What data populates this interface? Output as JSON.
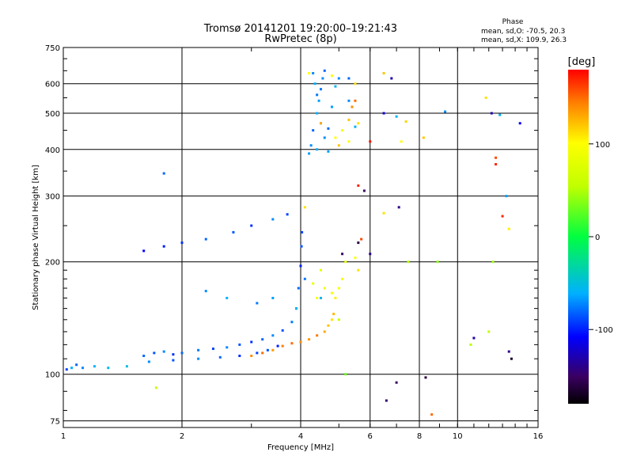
{
  "chart_data": {
    "type": "scatter",
    "title": "Tromsø 20141201 19:20:00–19:21:43",
    "subtitle": "RwPretec (8p)",
    "xlabel": "Frequency [MHz]",
    "ylabel": "Stationary phase Virtual Height [km]",
    "x_scale": "log",
    "y_scale": "log",
    "xlim": [
      1,
      16
    ],
    "ylim": [
      72,
      750
    ],
    "x_ticks": [
      1,
      2,
      4,
      6,
      8,
      10,
      16
    ],
    "y_ticks": [
      75,
      100,
      200,
      300,
      400,
      500,
      600,
      750
    ],
    "grid": true,
    "phase_box": {
      "heading": "Phase",
      "line_O": "mean, sd,O: -70.5, 20.3",
      "line_X": "mean, sd,X: 109.9, 26.3"
    },
    "colorbar": {
      "label": "[deg]",
      "range": [
        -180,
        180
      ],
      "ticks": [
        100,
        0,
        -100
      ],
      "colormap": "rainbow"
    },
    "series": [
      {
        "points": [
          [
            1.02,
            103,
            -90
          ],
          [
            1.05,
            104,
            -60
          ],
          [
            1.08,
            106,
            -80
          ],
          [
            1.12,
            104,
            -70
          ],
          [
            1.2,
            105,
            -60
          ],
          [
            1.3,
            104,
            -55
          ],
          [
            1.45,
            105,
            -50
          ],
          [
            1.6,
            112,
            -80
          ],
          [
            1.7,
            114,
            -85
          ],
          [
            1.8,
            115,
            -70
          ],
          [
            1.9,
            113,
            -95
          ],
          [
            2.0,
            114,
            -80
          ],
          [
            2.2,
            116,
            -75
          ],
          [
            2.4,
            117,
            -90
          ],
          [
            2.6,
            118,
            -70
          ],
          [
            2.8,
            120,
            -85
          ],
          [
            3.0,
            122,
            -95
          ],
          [
            3.2,
            124,
            -80
          ],
          [
            3.4,
            127,
            -70
          ],
          [
            3.6,
            131,
            -85
          ],
          [
            3.8,
            138,
            -75
          ],
          [
            3.9,
            150,
            -90
          ],
          [
            3.95,
            170,
            -80
          ],
          [
            4.0,
            195,
            -100
          ],
          [
            4.02,
            220,
            -85
          ],
          [
            4.03,
            240,
            -90
          ],
          [
            1.65,
            108,
            -70
          ],
          [
            1.9,
            109,
            -85
          ],
          [
            2.2,
            110,
            -70
          ],
          [
            2.5,
            111,
            -80
          ],
          [
            2.8,
            112,
            -95
          ],
          [
            3.1,
            114,
            -90
          ],
          [
            3.3,
            116,
            -85
          ],
          [
            3.5,
            119,
            -100
          ],
          [
            1.6,
            214,
            -110
          ],
          [
            1.8,
            220,
            -100
          ],
          [
            2.0,
            225,
            -95
          ],
          [
            2.3,
            230,
            -80
          ],
          [
            2.7,
            240,
            -85
          ],
          [
            3.0,
            250,
            -95
          ],
          [
            3.4,
            260,
            -70
          ],
          [
            3.7,
            268,
            -90
          ],
          [
            1.8,
            345,
            -80
          ],
          [
            2.3,
            167,
            -70
          ],
          [
            2.6,
            160,
            -60
          ],
          [
            3.1,
            155,
            -75
          ],
          [
            3.4,
            160,
            -65
          ],
          [
            3.9,
            150,
            -55
          ],
          [
            4.1,
            180,
            -75
          ],
          [
            4.5,
            160,
            -55
          ],
          [
            4.25,
            410,
            -70
          ],
          [
            4.3,
            450,
            -80
          ],
          [
            4.4,
            500,
            -60
          ],
          [
            4.45,
            540,
            -65
          ],
          [
            4.5,
            580,
            -75
          ],
          [
            4.55,
            620,
            -70
          ],
          [
            4.6,
            650,
            -80
          ],
          [
            4.3,
            640,
            -70
          ],
          [
            4.35,
            600,
            -60
          ],
          [
            4.4,
            560,
            -75
          ],
          [
            4.5,
            470,
            -60
          ],
          [
            4.6,
            430,
            -70
          ],
          [
            4.7,
            455,
            -80
          ],
          [
            4.8,
            520,
            -65
          ],
          [
            4.9,
            590,
            -55
          ],
          [
            5.0,
            620,
            -70
          ],
          [
            4.2,
            390,
            -65
          ],
          [
            4.4,
            400,
            -60
          ],
          [
            4.7,
            395,
            -65
          ],
          [
            5.5,
            460,
            -60
          ],
          [
            7.0,
            490,
            -55
          ],
          [
            9.3,
            505,
            -70
          ],
          [
            12.8,
            495,
            -60
          ],
          [
            13.3,
            300,
            -65
          ],
          [
            5.3,
            620,
            -80
          ],
          [
            5.3,
            540,
            -70
          ]
        ]
      },
      {
        "points": [
          [
            3.0,
            112,
            140
          ],
          [
            3.2,
            114,
            150
          ],
          [
            3.4,
            116,
            135
          ],
          [
            3.6,
            119,
            145
          ],
          [
            3.8,
            121,
            150
          ],
          [
            4.0,
            122,
            140
          ],
          [
            4.2,
            124,
            135
          ],
          [
            4.4,
            127,
            145
          ],
          [
            4.6,
            130,
            130
          ],
          [
            4.7,
            135,
            120
          ],
          [
            4.8,
            140,
            110
          ],
          [
            4.85,
            145,
            125
          ],
          [
            4.9,
            160,
            105
          ],
          [
            5.0,
            170,
            100
          ],
          [
            5.1,
            180,
            95
          ],
          [
            4.6,
            170,
            90
          ],
          [
            4.4,
            160,
            100
          ],
          [
            4.3,
            175,
            85
          ],
          [
            4.5,
            190,
            80
          ],
          [
            5.2,
            200,
            85
          ],
          [
            5.5,
            205,
            100
          ],
          [
            5.6,
            190,
            110
          ],
          [
            4.8,
            165,
            95
          ],
          [
            4.1,
            280,
            110
          ],
          [
            4.9,
            430,
            100
          ],
          [
            5.1,
            450,
            95
          ],
          [
            5.3,
            480,
            120
          ],
          [
            5.4,
            520,
            140
          ],
          [
            5.5,
            540,
            150
          ],
          [
            5.6,
            470,
            110
          ],
          [
            5.3,
            420,
            100
          ],
          [
            5.0,
            410,
            120
          ],
          [
            5.5,
            600,
            110
          ],
          [
            4.8,
            630,
            95
          ],
          [
            4.2,
            640,
            100
          ],
          [
            6.5,
            640,
            120
          ],
          [
            7.2,
            420,
            100
          ],
          [
            8.2,
            430,
            120
          ],
          [
            11.8,
            550,
            110
          ],
          [
            13.5,
            245,
            105
          ],
          [
            6.5,
            270,
            110
          ],
          [
            7.4,
            475,
            115
          ],
          [
            8.8,
            800,
            140
          ],
          [
            12.5,
            380,
            160
          ],
          [
            13.0,
            265,
            170
          ],
          [
            4.5,
            470,
            130
          ]
        ]
      },
      {
        "points": [
          [
            5.6,
            320,
            170
          ],
          [
            5.8,
            310,
            -150
          ],
          [
            6.0,
            210,
            -140
          ],
          [
            5.7,
            230,
            160
          ],
          [
            6.5,
            500,
            -120
          ],
          [
            6.8,
            620,
            -130
          ],
          [
            7.1,
            280,
            -140
          ],
          [
            7.0,
            95,
            -150
          ],
          [
            6.6,
            85,
            -145
          ],
          [
            8.3,
            98,
            -160
          ],
          [
            11.0,
            125,
            -130
          ],
          [
            13.5,
            115,
            -140
          ],
          [
            13.7,
            110,
            -170
          ],
          [
            12.2,
            500,
            -130
          ],
          [
            14.4,
            470,
            -110
          ],
          [
            12.5,
            365,
            170
          ],
          [
            8.6,
            78,
            150
          ],
          [
            5.6,
            225,
            -160
          ],
          [
            6.0,
            420,
            175
          ],
          [
            5.1,
            210,
            -150
          ]
        ]
      },
      {
        "points": [
          [
            1.72,
            92,
            60
          ],
          [
            7.5,
            200,
            50
          ],
          [
            8.9,
            200,
            40
          ],
          [
            12.3,
            200,
            45
          ],
          [
            10.8,
            120,
            50
          ],
          [
            12.0,
            130,
            55
          ],
          [
            5.0,
            140,
            60
          ],
          [
            5.2,
            100,
            30
          ]
        ]
      }
    ]
  }
}
